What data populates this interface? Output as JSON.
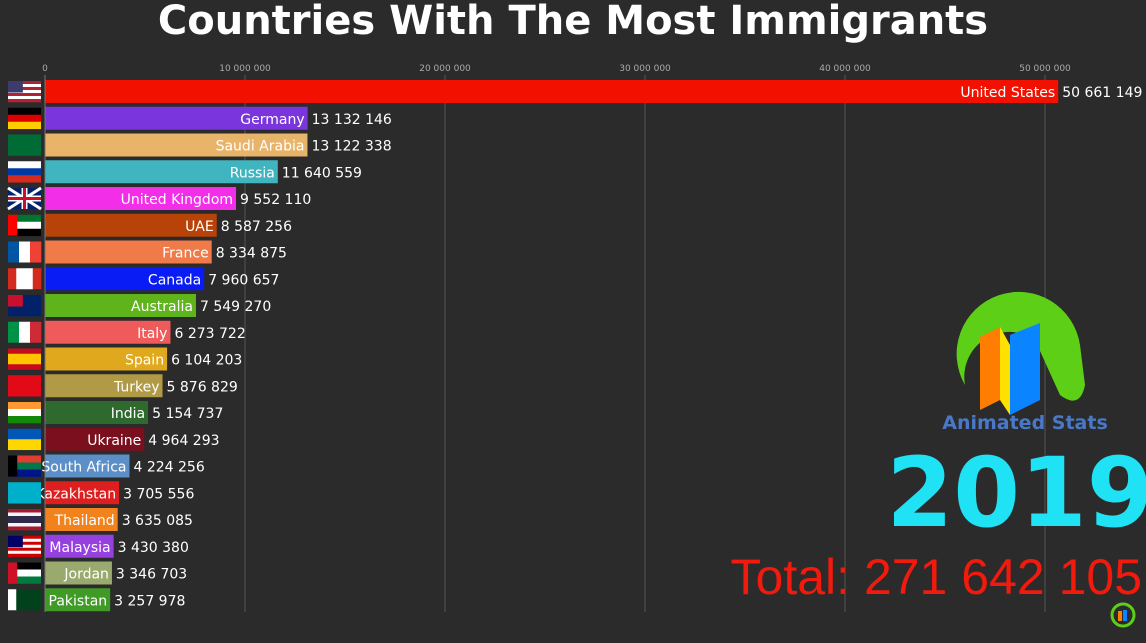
{
  "title": "Countries With The Most Immigrants",
  "chart_data": {
    "type": "bar",
    "orientation": "horizontal",
    "title": "Countries With The Most Immigrants",
    "xlim": [
      0,
      53000000
    ],
    "x_ticks": [
      0,
      10000000,
      20000000,
      30000000,
      40000000,
      50000000
    ],
    "x_tick_labels": [
      "0",
      "10 000 000",
      "20 000 000",
      "30 000 000",
      "40 000 000",
      "50 000 000"
    ],
    "grid": true,
    "categories": [
      "United States",
      "Germany",
      "Saudi Arabia",
      "Russia",
      "United Kingdom",
      "UAE",
      "France",
      "Canada",
      "Australia",
      "Italy",
      "Spain",
      "Turkey",
      "India",
      "Ukraine",
      "South Africa",
      "Kazakhstan",
      "Thailand",
      "Malaysia",
      "Jordan",
      "Pakistan"
    ],
    "values": [
      50661149,
      13132146,
      13122338,
      11640559,
      9552110,
      8587256,
      8334875,
      7960657,
      7549270,
      6273722,
      6104203,
      5876829,
      5154737,
      4964293,
      4224256,
      3705556,
      3635085,
      3430380,
      3346703,
      3257978
    ],
    "value_labels": [
      "50 661 149",
      "13 132 146",
      "13 122 338",
      "11 640 559",
      "9 552 110",
      "8 587 256",
      "8 334 875",
      "7 960 657",
      "7 549 270",
      "6 273 722",
      "6 104 203",
      "5 876 829",
      "5 154 737",
      "4 964 293",
      "4 224 256",
      "3 705 556",
      "3 635 085",
      "3 430 380",
      "3 346 703",
      "3 257 978"
    ],
    "colors": [
      "#f21100",
      "#7b35dd",
      "#e8b46a",
      "#41b5bf",
      "#f22ee8",
      "#b84308",
      "#f07a48",
      "#0a1cf5",
      "#5fb31b",
      "#ef5a5a",
      "#e0a81c",
      "#b09a46",
      "#2e6a2e",
      "#7c0f1d",
      "#5c8ec8",
      "#dd1f1f",
      "#f2821c",
      "#9640e0",
      "#9aaa6e",
      "#3f9b26"
    ],
    "flags": [
      {
        "dir": "h",
        "stripes": [
          "#b22234",
          "#fff",
          "#b22234",
          "#fff",
          "#b22234",
          "#fff",
          "#b22234"
        ],
        "canton": "#3c3b6e"
      },
      {
        "dir": "h",
        "stripes": [
          "#000",
          "#dd0000",
          "#ffce00"
        ]
      },
      {
        "dir": "h",
        "stripes": [
          "#006c35"
        ]
      },
      {
        "dir": "h",
        "stripes": [
          "#fff",
          "#0039a6",
          "#d52b1e"
        ]
      },
      {
        "dir": "h",
        "stripes": [
          "#012169"
        ],
        "cross": "#c8102e"
      },
      {
        "dir": "h",
        "stripes": [
          "#00732f",
          "#fff",
          "#000"
        ],
        "hoist": "#ff0000"
      },
      {
        "dir": "v",
        "stripes": [
          "#0055a4",
          "#fff",
          "#ef4135"
        ]
      },
      {
        "dir": "v",
        "stripes": [
          "#d52b1e",
          "#fff",
          "#fff",
          "#d52b1e"
        ]
      },
      {
        "dir": "h",
        "stripes": [
          "#012169"
        ],
        "canton": "#c8102e"
      },
      {
        "dir": "v",
        "stripes": [
          "#009246",
          "#fff",
          "#ce2b37"
        ]
      },
      {
        "dir": "h",
        "stripes": [
          "#c60b1e",
          "#ffc400",
          "#ffc400",
          "#c60b1e"
        ]
      },
      {
        "dir": "h",
        "stripes": [
          "#e30a17"
        ]
      },
      {
        "dir": "h",
        "stripes": [
          "#ff9933",
          "#fff",
          "#138808"
        ]
      },
      {
        "dir": "h",
        "stripes": [
          "#0057b7",
          "#ffd700"
        ]
      },
      {
        "dir": "h",
        "stripes": [
          "#e03c31",
          "#007749",
          "#001489"
        ],
        "hoist": "#000"
      },
      {
        "dir": "h",
        "stripes": [
          "#00afca"
        ]
      },
      {
        "dir": "h",
        "stripes": [
          "#a51931",
          "#f4f5f8",
          "#2d2a4a",
          "#2d2a4a",
          "#f4f5f8",
          "#a51931"
        ]
      },
      {
        "dir": "h",
        "stripes": [
          "#cc0001",
          "#fff",
          "#cc0001",
          "#fff",
          "#cc0001",
          "#fff",
          "#cc0001"
        ],
        "canton": "#010066"
      },
      {
        "dir": "h",
        "stripes": [
          "#000",
          "#fff",
          "#007a3d"
        ],
        "hoist": "#ce1126"
      },
      {
        "dir": "v",
        "stripes": [
          "#fff",
          "#01411c",
          "#01411c",
          "#01411c"
        ]
      }
    ]
  },
  "logo": {
    "text": "Animated Stats"
  },
  "year": "2019",
  "total": "Total: 271 642 105"
}
